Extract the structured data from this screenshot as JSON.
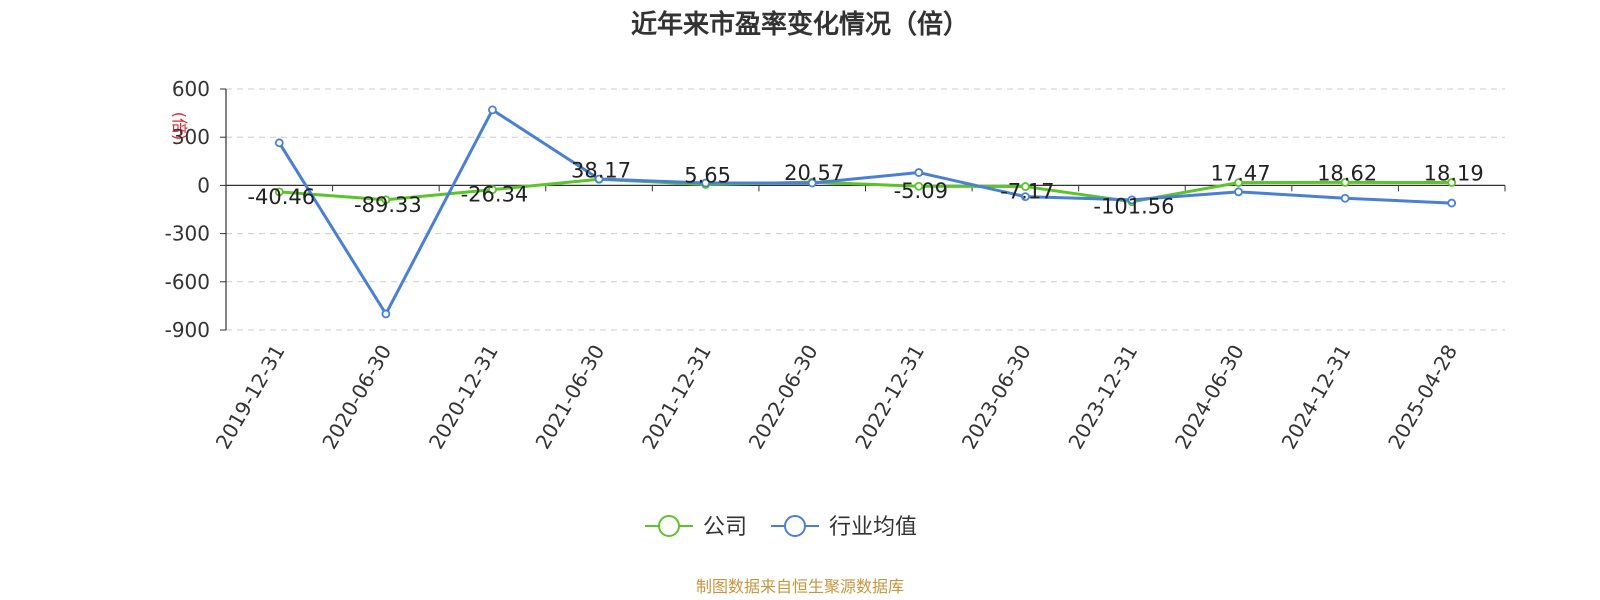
{
  "chart_data": {
    "type": "line",
    "title": "近年来市盈率变化情况（倍）",
    "ylabel": "(倍)",
    "xlabel": "",
    "ylim": [
      -900,
      600
    ],
    "yticks": [
      600,
      300,
      0,
      -300,
      -600,
      -900
    ],
    "grid": true,
    "legend_position": "bottom-center",
    "categories": [
      "2019-12-31",
      "2020-06-30",
      "2020-12-31",
      "2021-06-30",
      "2021-12-31",
      "2022-06-30",
      "2022-12-31",
      "2023-06-30",
      "2023-12-31",
      "2024-06-30",
      "2024-12-31",
      "2025-04-28"
    ],
    "series": [
      {
        "name": "公司",
        "color": "#5cc42b",
        "values": [
          -40.46,
          -89.33,
          -26.34,
          38.17,
          5.65,
          20.57,
          -5.09,
          -7.17,
          -101.56,
          17.47,
          18.62,
          18.19
        ]
      },
      {
        "name": "行业均值",
        "color": "#4a7fd6",
        "values": [
          265,
          -800,
          470,
          40,
          15,
          15,
          80,
          -70,
          -90,
          -40,
          -80,
          -110
        ]
      }
    ],
    "data_labels": [
      "-40.46",
      "-89.33",
      "-26.34",
      "38.17",
      "5.65",
      "20.57",
      "-5.09",
      "-7.17",
      "-101.56",
      "17.47",
      "18.62",
      "18.19"
    ]
  },
  "source": "制图数据来自恒生聚源数据库"
}
